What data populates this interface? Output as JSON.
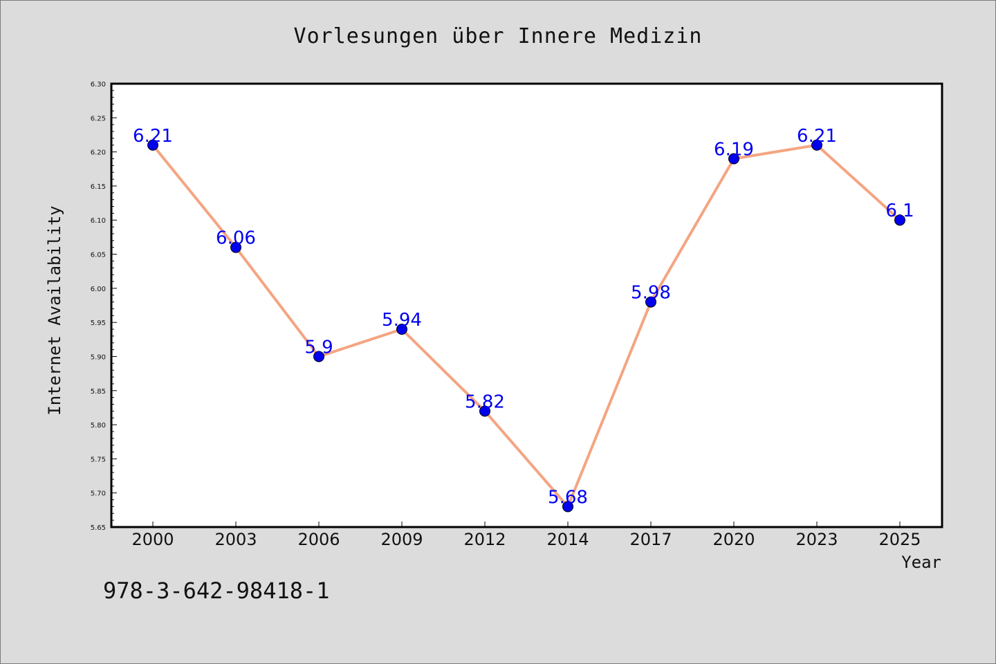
{
  "chart_data": {
    "type": "line",
    "title": "Vorlesungen über Innere Medizin",
    "xlabel": "Year",
    "ylabel": "Internet Availability",
    "categories": [
      "2000",
      "2003",
      "2006",
      "2009",
      "2012",
      "2014",
      "2017",
      "2020",
      "2023",
      "2025"
    ],
    "series": [
      {
        "values": [
          6.21,
          6.06,
          5.9,
          5.94,
          5.82,
          5.68,
          5.98,
          6.19,
          6.21,
          6.1
        ],
        "labels": [
          "6.21",
          "6.06",
          "5.9",
          "5.94",
          "5.82",
          "5.68",
          "5.98",
          "6.19",
          "6.21",
          "6.1"
        ],
        "line_color": "#f4a582",
        "marker_color": "#0000ee",
        "label_color": "#0000ee"
      }
    ],
    "ylim": [
      5.65,
      6.3
    ],
    "yticks": [
      "5.65",
      "5.70",
      "5.75",
      "5.80",
      "5.85",
      "5.90",
      "5.95",
      "6.00",
      "6.05",
      "6.10",
      "6.15",
      "6.20",
      "6.25",
      "6.30"
    ],
    "grid": false
  },
  "footer": {
    "code": "978-3-642-98418-1"
  }
}
